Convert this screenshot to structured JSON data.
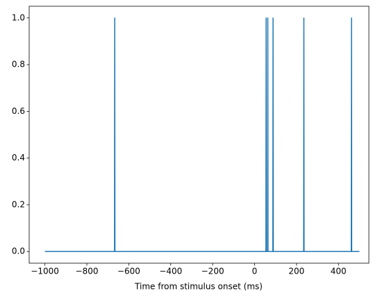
{
  "chart_data": {
    "type": "line",
    "xlabel": "Time from stimulus onset (ms)",
    "series": [
      {
        "color": "#1f77b4",
        "x": [
          -1000,
          -668,
          -667,
          -666,
          54,
          55,
          56,
          62,
          63,
          64,
          87,
          88,
          89,
          234,
          235,
          236,
          461,
          462,
          463,
          500
        ],
        "values": [
          0,
          0,
          1,
          0,
          0,
          1,
          0,
          0,
          1,
          0,
          0,
          1,
          0,
          0,
          1,
          0,
          0,
          1,
          0,
          0
        ]
      }
    ],
    "xlim": [
      -1075,
      545
    ],
    "xticks": [
      {
        "value": -1000,
        "label": "−1000"
      },
      {
        "value": -800,
        "label": "−800"
      },
      {
        "value": -600,
        "label": "−600"
      },
      {
        "value": -400,
        "label": "−400"
      },
      {
        "value": -200,
        "label": "−200"
      },
      0,
      200,
      400
    ],
    "ylim": [
      -0.05,
      1.05
    ],
    "yticks": [
      {
        "value": 0,
        "label": "0.0"
      },
      {
        "value": 0.2,
        "label": "0.2"
      },
      {
        "value": 0.4,
        "label": "0.4"
      },
      {
        "value": 0.6,
        "label": "0.6"
      },
      {
        "value": 0.8,
        "label": "0.8"
      },
      {
        "value": 1,
        "label": "1.0"
      }
    ],
    "grid": false
  }
}
